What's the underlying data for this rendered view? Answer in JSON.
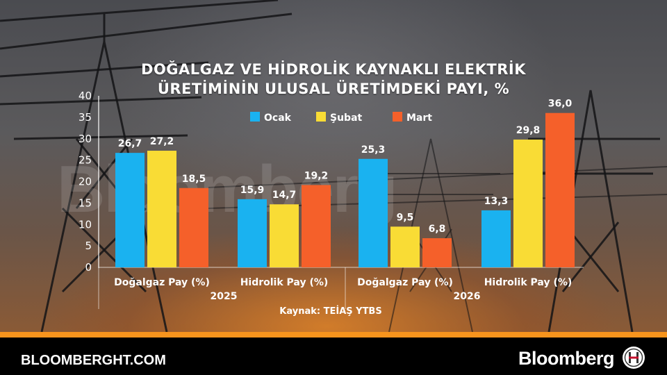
{
  "chart_data": {
    "type": "bar",
    "title_line1": "DOĞALGAZ VE HİDROLİK KAYNAKLI ELEKTRİK",
    "title_line2": "ÜRETİMİNİN ULUSAL ÜRETİMDEKİ PAYI, %",
    "ylim": [
      0,
      40
    ],
    "yticks": [
      "0",
      "5",
      "10",
      "15",
      "20",
      "25",
      "30",
      "35",
      "40"
    ],
    "legend_position": "top-center",
    "grid": false,
    "categories": [
      "Doğalgaz Pay (%)",
      "Hidrolik Pay (%)",
      "Doğalgaz Pay (%)",
      "Hidrolik Pay (%)"
    ],
    "groups": [
      {
        "label": "2025",
        "categories": [
          0,
          1
        ]
      },
      {
        "label": "2026",
        "categories": [
          2,
          3
        ]
      }
    ],
    "series": [
      {
        "name": "Ocak",
        "color": "#1ab2f0",
        "values": [
          26.7,
          15.9,
          25.3,
          13.3
        ],
        "labels": [
          "26,7",
          "15,9",
          "25,3",
          "13,3"
        ]
      },
      {
        "name": "Şubat",
        "color": "#f9dc35",
        "values": [
          27.2,
          14.7,
          9.5,
          29.8
        ],
        "labels": [
          "27,2",
          "14,7",
          "9,5",
          "29,8"
        ]
      },
      {
        "name": "Mart",
        "color": "#f5602a",
        "values": [
          18.5,
          19.2,
          6.8,
          36.0
        ],
        "labels": [
          "18,5",
          "19,2",
          "6,8",
          "36,0"
        ]
      }
    ],
    "source": "Kaynak: TEİAŞ YTBS"
  },
  "footer": {
    "url": "BLOOMBERGHT.COM",
    "brand": "Bloomberg",
    "watermark": "Bloomberg"
  },
  "colors": {
    "accent": "#f7941d",
    "ocak": "#1ab2f0",
    "subat": "#f9dc35",
    "mart": "#f5602a"
  }
}
